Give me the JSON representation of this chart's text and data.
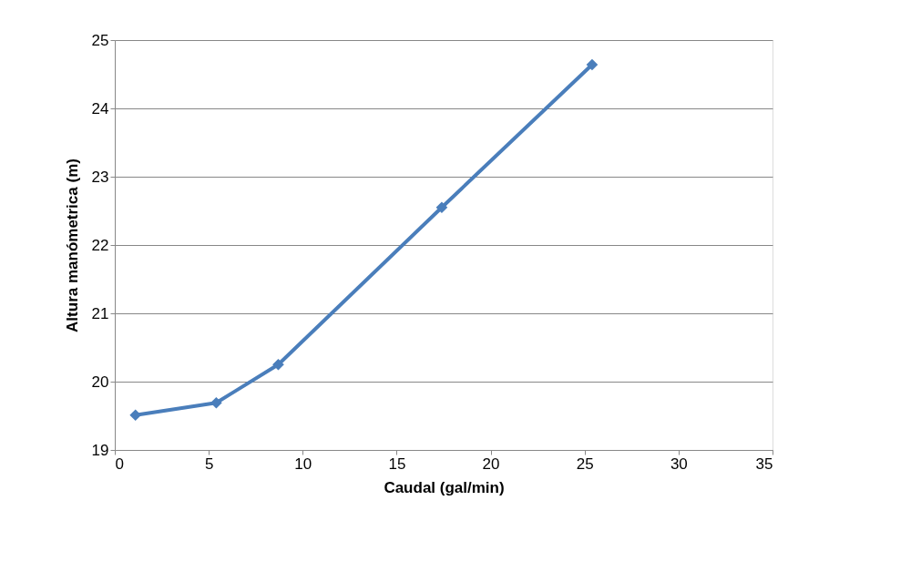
{
  "chart_data": {
    "type": "line",
    "xlabel": "Caudal (gal/min)",
    "ylabel": "Altura manómetrica (m)",
    "x": [
      1.1,
      5.4,
      8.7,
      17.4,
      25.4
    ],
    "series": [
      {
        "color": "#4a7ebb",
        "values": [
          19.51,
          19.69,
          20.25,
          22.55,
          24.64
        ]
      }
    ],
    "xlim": [
      0,
      35
    ],
    "xticks": [
      0,
      5,
      10,
      15,
      20,
      25,
      30,
      35
    ],
    "ylim": [
      19,
      25
    ],
    "yticks": [
      19,
      20,
      21,
      22,
      23,
      24,
      25
    ],
    "grid": "y",
    "marker": "diamond",
    "line_style": "solid"
  }
}
